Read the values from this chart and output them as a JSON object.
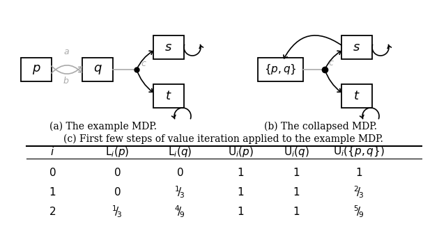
{
  "fig_width": 6.4,
  "fig_height": 3.45,
  "dpi": 100,
  "background": "#ffffff",
  "caption_a": "(a) The example MDP.",
  "caption_b": "(b) The collapsed MDP.",
  "caption_c": "(c) First few steps of value iteration applied to the example MDP.",
  "node_color": "#ffffff",
  "node_edge_color": "#000000",
  "arrow_color": "#000000",
  "gray_color": "#aaaaaa"
}
